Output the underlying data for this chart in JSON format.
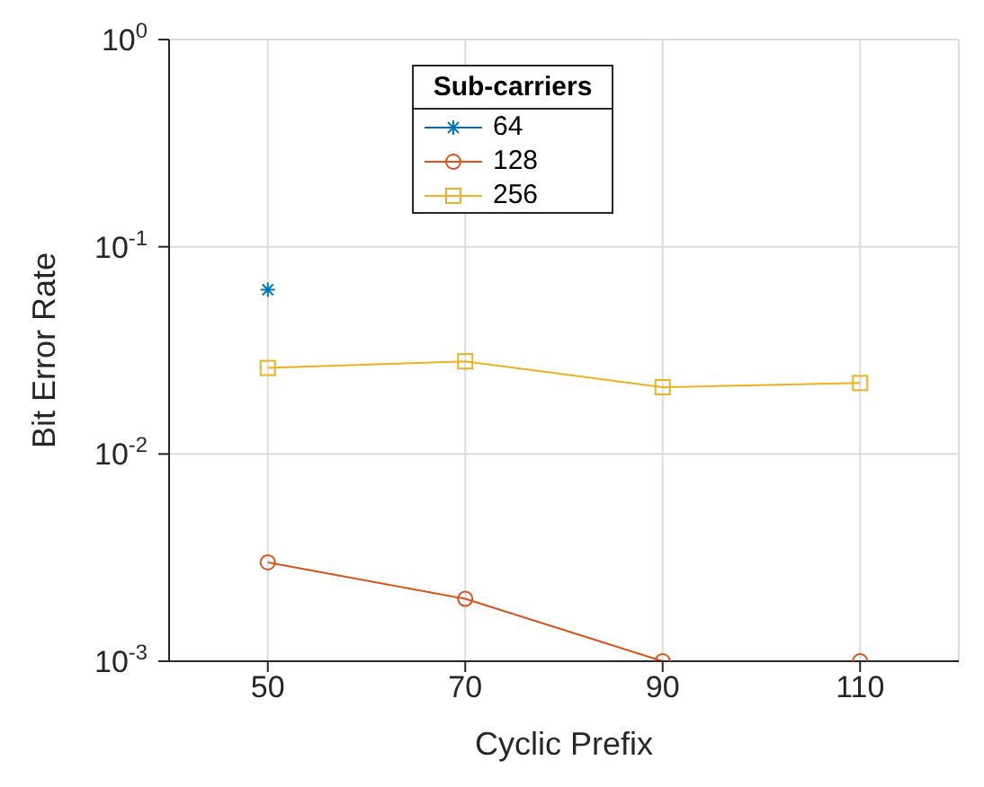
{
  "chart_data": {
    "type": "line",
    "xlabel": "Cyclic Prefix",
    "ylabel": "Bit Error Rate",
    "legend_title": "Sub-carriers",
    "x": [
      50,
      70,
      90,
      110
    ],
    "series": [
      {
        "name": "64",
        "color": "#0072bd",
        "marker": "cross",
        "values": [
          0.062,
          null,
          null,
          null
        ]
      },
      {
        "name": "128",
        "color": "#d95319",
        "marker": "circle",
        "values": [
          0.003,
          0.002,
          0.001,
          0.001
        ]
      },
      {
        "name": "256",
        "color": "#edb120",
        "marker": "square",
        "values": [
          0.026,
          0.028,
          0.021,
          0.022
        ]
      }
    ],
    "xlim": [
      40,
      120
    ],
    "xticks": [
      50,
      70,
      90,
      110
    ],
    "log": "y",
    "ylim": [
      0.001,
      1
    ],
    "yticks": [
      {
        "value": 0.001,
        "label": "10$^{-3}$"
      },
      {
        "value": 0.01,
        "label": "10$^{-2}$"
      },
      {
        "value": 0.1,
        "label": "10$^{-1}$"
      },
      {
        "value": 1,
        "label": "10$^{0}$"
      }
    ],
    "grid": true,
    "legend": "top"
  }
}
